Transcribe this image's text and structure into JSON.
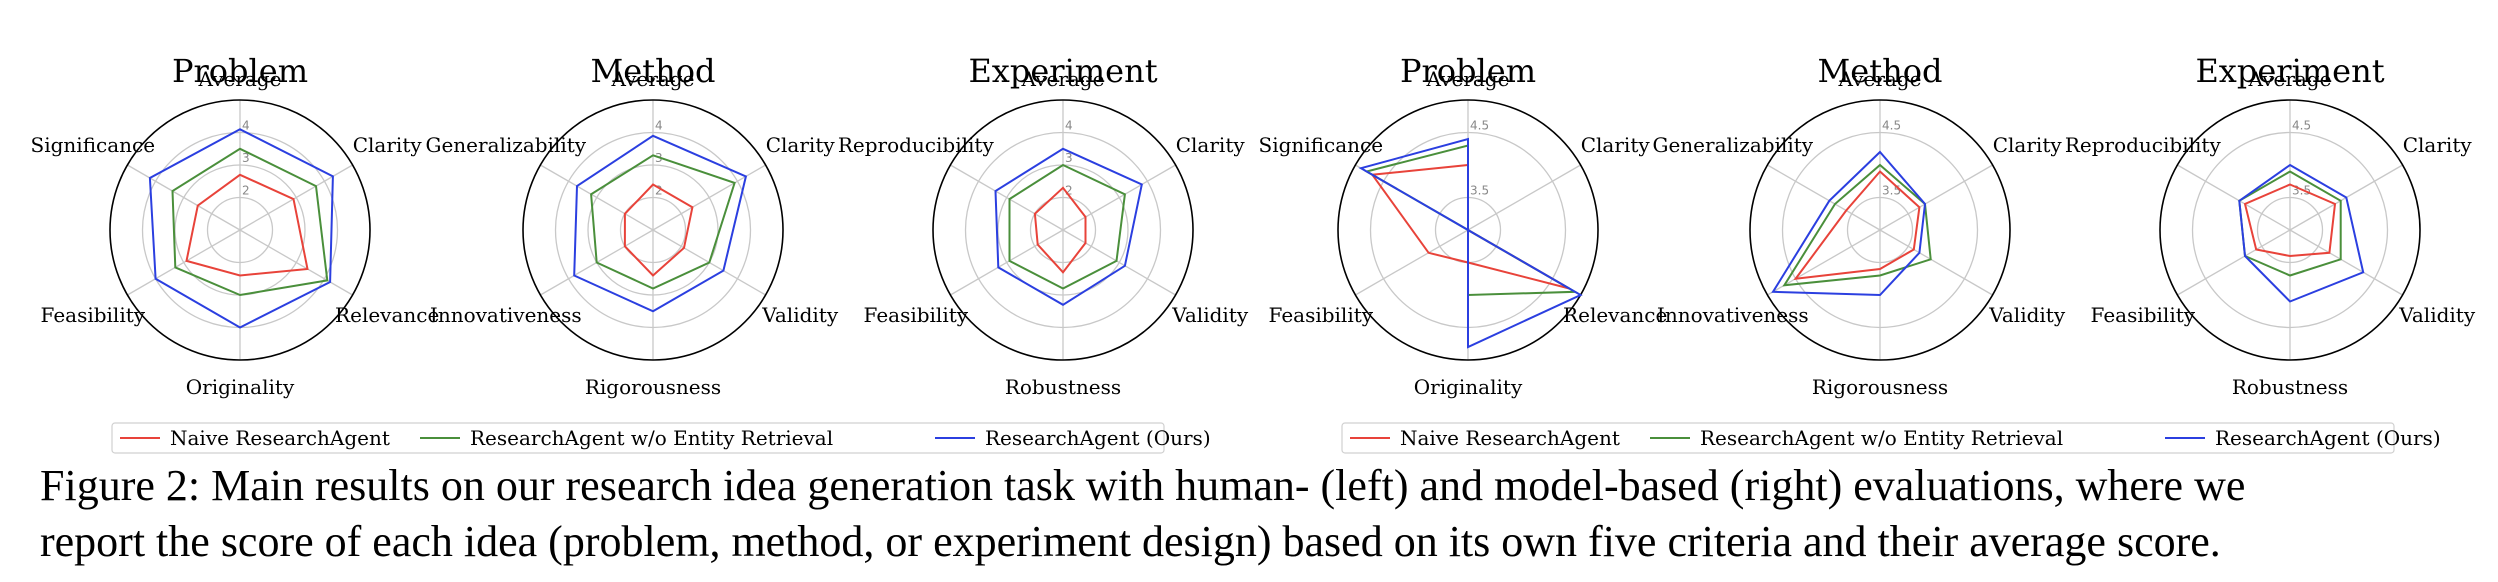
{
  "caption": {
    "line1": "Figure 2: Main results on our research idea generation task with human- (left) and model-based (right) evaluations, where we",
    "line2": "report the score of each idea (problem, method, or experiment design) based on its own five criteria and their average score."
  },
  "legend_groups": [
    [
      {
        "label": "Naive ResearchAgent",
        "color": "#e8433a"
      },
      {
        "label": "ResearchAgent w/o Entity Retrieval",
        "color": "#4a8f3b"
      },
      {
        "label": "ResearchAgent (Ours)",
        "color": "#2b3fe0"
      }
    ],
    [
      {
        "label": "Naive ResearchAgent",
        "color": "#e8433a"
      },
      {
        "label": "ResearchAgent w/o Entity Retrieval",
        "color": "#4a8f3b"
      },
      {
        "label": "ResearchAgent (Ours)",
        "color": "#2b3fe0"
      }
    ]
  ],
  "chart_data": [
    {
      "type": "radar",
      "title": "Problem",
      "group": "human",
      "axes": [
        "Average",
        "Clarity",
        "Relevance",
        "Originality",
        "Feasibility",
        "Significance"
      ],
      "rlim": [
        1,
        5
      ],
      "rticks": [
        "2",
        "3",
        "4"
      ],
      "series": [
        {
          "name": "Naive ResearchAgent",
          "color": "#e8433a",
          "values": [
            2.7,
            2.9,
            3.4,
            2.4,
            2.9,
            2.5
          ]
        },
        {
          "name": "ResearchAgent w/o Entity Retrieval",
          "color": "#4a8f3b",
          "values": [
            3.5,
            3.7,
            4.1,
            3.0,
            3.3,
            3.4
          ]
        },
        {
          "name": "ResearchAgent (Ours)",
          "color": "#2b3fe0",
          "values": [
            4.1,
            4.3,
            4.2,
            4.0,
            4.0,
            4.2
          ]
        }
      ]
    },
    {
      "type": "radar",
      "title": "Method",
      "group": "human",
      "axes": [
        "Average",
        "Clarity",
        "Validity",
        "Rigorousness",
        "Innovativeness",
        "Generalizability"
      ],
      "rlim": [
        1,
        5
      ],
      "rticks": [
        "2",
        "3",
        "4"
      ],
      "series": [
        {
          "name": "Naive ResearchAgent",
          "color": "#e8433a",
          "values": [
            2.4,
            2.4,
            2.1,
            2.4,
            2.0,
            2.0
          ]
        },
        {
          "name": "ResearchAgent w/o Entity Retrieval",
          "color": "#4a8f3b",
          "values": [
            3.3,
            3.9,
            3.0,
            2.8,
            3.0,
            3.2
          ]
        },
        {
          "name": "ResearchAgent (Ours)",
          "color": "#2b3fe0",
          "values": [
            3.9,
            4.3,
            3.5,
            3.5,
            3.8,
            3.7
          ]
        }
      ]
    },
    {
      "type": "radar",
      "title": "Experiment",
      "group": "human",
      "axes": [
        "Average",
        "Clarity",
        "Validity",
        "Robustness",
        "Feasibility",
        "Reproducibility"
      ],
      "rlim": [
        1,
        5
      ],
      "rticks": [
        "2",
        "3",
        "4"
      ],
      "series": [
        {
          "name": "Naive ResearchAgent",
          "color": "#e8433a",
          "values": [
            2.3,
            1.8,
            1.8,
            2.3,
            1.9,
            2.0
          ]
        },
        {
          "name": "ResearchAgent w/o Entity Retrieval",
          "color": "#4a8f3b",
          "values": [
            3.0,
            3.2,
            2.9,
            2.8,
            2.9,
            2.9
          ]
        },
        {
          "name": "ResearchAgent (Ours)",
          "color": "#2b3fe0",
          "values": [
            3.5,
            3.8,
            3.2,
            3.3,
            3.3,
            3.4
          ]
        }
      ]
    },
    {
      "type": "radar",
      "title": "Problem",
      "group": "model",
      "axes": [
        "Average",
        "Clarity",
        "Relevance",
        "Originality",
        "Feasibility",
        "Significance"
      ],
      "rlim": [
        3,
        5
      ],
      "rticks": [
        "3.5",
        "4.5"
      ],
      "series": [
        {
          "name": "Naive ResearchAgent",
          "color": "#e8433a",
          "values": [
            4.0,
            3.0,
            4.8,
            3.5,
            3.7,
            4.7
          ]
        },
        {
          "name": "ResearchAgent w/o Entity Retrieval",
          "color": "#4a8f3b",
          "values": [
            4.3,
            3.0,
            4.9,
            4.0,
            3.0,
            4.8
          ]
        },
        {
          "name": "ResearchAgent (Ours)",
          "color": "#2b3fe0",
          "values": [
            4.4,
            3.0,
            5.0,
            4.8,
            3.0,
            4.9
          ]
        }
      ]
    },
    {
      "type": "radar",
      "title": "Method",
      "group": "model",
      "axes": [
        "Average",
        "Clarity",
        "Validity",
        "Rigorousness",
        "Innovativeness",
        "Generalizability"
      ],
      "rlim": [
        3,
        5
      ],
      "rticks": [
        "3.5",
        "4.5"
      ],
      "series": [
        {
          "name": "Naive ResearchAgent",
          "color": "#e8433a",
          "values": [
            3.9,
            3.7,
            3.6,
            3.6,
            4.5,
            3.6
          ]
        },
        {
          "name": "ResearchAgent w/o Entity Retrieval",
          "color": "#4a8f3b",
          "values": [
            4.0,
            3.8,
            3.9,
            3.7,
            4.7,
            3.8
          ]
        },
        {
          "name": "ResearchAgent (Ours)",
          "color": "#2b3fe0",
          "values": [
            4.2,
            3.8,
            3.7,
            4.0,
            4.9,
            3.9
          ]
        }
      ]
    },
    {
      "type": "radar",
      "title": "Experiment",
      "group": "model",
      "axes": [
        "Average",
        "Clarity",
        "Validity",
        "Robustness",
        "Feasibility",
        "Reproducibility"
      ],
      "rlim": [
        3,
        5
      ],
      "rticks": [
        "3.5",
        "4.5"
      ],
      "series": [
        {
          "name": "Naive ResearchAgent",
          "color": "#e8433a",
          "values": [
            3.7,
            3.8,
            3.7,
            3.4,
            3.6,
            3.8
          ]
        },
        {
          "name": "ResearchAgent w/o Entity Retrieval",
          "color": "#4a8f3b",
          "values": [
            3.9,
            3.9,
            3.9,
            3.7,
            3.8,
            3.9
          ]
        },
        {
          "name": "ResearchAgent (Ours)",
          "color": "#2b3fe0",
          "values": [
            4.0,
            4.0,
            4.3,
            4.1,
            3.8,
            3.9
          ]
        }
      ]
    }
  ]
}
